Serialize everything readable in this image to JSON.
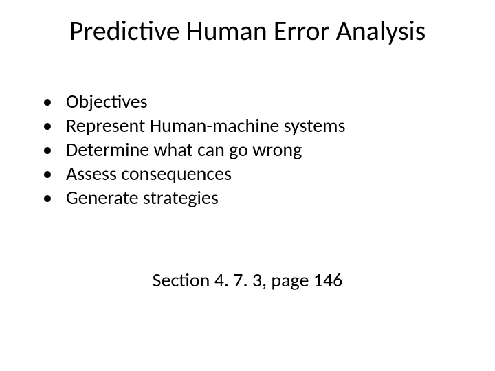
{
  "title": "Predictive Human Error Analysis",
  "bullets": [
    "Objectives",
    "Represent Human-machine systems",
    "Determine what can go wrong",
    "Assess consequences",
    "Generate strategies"
  ],
  "footer": "Section 4. 7. 3, page 146",
  "colors": {
    "background": "#ffffff",
    "text": "#000000"
  },
  "typography": {
    "title_fontsize": 40,
    "body_fontsize": 28,
    "font_family": "Calibri"
  }
}
